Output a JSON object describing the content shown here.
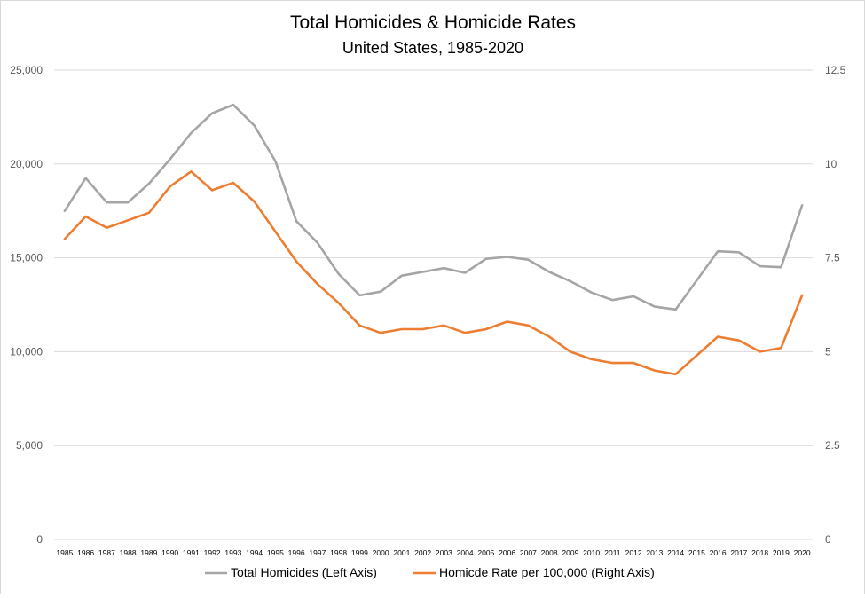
{
  "chart_data": {
    "type": "line",
    "title": "Total Homicides & Homicide Rates",
    "subtitle": "United States, 1985-2020",
    "categories": [
      "1985",
      "1986",
      "1987",
      "1988",
      "1989",
      "1990",
      "1991",
      "1992",
      "1993",
      "1994",
      "1995",
      "1996",
      "1997",
      "1998",
      "1999",
      "2000",
      "2001",
      "2002",
      "2003",
      "2004",
      "2005",
      "2006",
      "2007",
      "2008",
      "2009",
      "2010",
      "2011",
      "2012",
      "2013",
      "2014",
      "2015",
      "2016",
      "2017",
      "2018",
      "2019",
      "2020"
    ],
    "y_left": {
      "range": [
        0,
        25000
      ],
      "ticks": [
        0,
        5000,
        10000,
        15000,
        20000,
        25000
      ],
      "tick_labels": [
        "0",
        "5,000",
        "10,000",
        "15,000",
        "20,000",
        "25,000"
      ]
    },
    "y_right": {
      "range": [
        0,
        12.5
      ],
      "ticks": [
        0,
        2.5,
        5,
        7.5,
        10,
        12.5
      ],
      "tick_labels": [
        "0",
        "2.5",
        "5",
        "7.5",
        "10",
        "12.5"
      ]
    },
    "grid": true,
    "legend_position": "bottom",
    "series": [
      {
        "name": "Total Homicides (Left Axis)",
        "axis": "left",
        "color": "#a5a5a5",
        "values": [
          17500,
          19250,
          17950,
          17950,
          18950,
          20250,
          21650,
          22700,
          23150,
          22050,
          20150,
          16950,
          15800,
          14150,
          13000,
          13200,
          14050,
          14250,
          14450,
          14200,
          14950,
          15050,
          14900,
          14250,
          13750,
          13150,
          12750,
          12950,
          12400,
          12250,
          13800,
          15350,
          15300,
          14550,
          14500,
          17800
        ]
      },
      {
        "name": "Homicde Rate per 100,000 (Right Axis)",
        "axis": "right",
        "color": "#ed7d31",
        "values": [
          8.0,
          8.6,
          8.3,
          8.5,
          8.7,
          9.4,
          9.8,
          9.3,
          9.5,
          9.0,
          8.2,
          7.4,
          6.8,
          6.3,
          5.7,
          5.5,
          5.6,
          5.6,
          5.7,
          5.5,
          5.6,
          5.8,
          5.7,
          5.4,
          5.0,
          4.8,
          4.7,
          4.7,
          4.5,
          4.4,
          4.9,
          5.4,
          5.3,
          5.0,
          5.1,
          6.5
        ]
      }
    ]
  }
}
